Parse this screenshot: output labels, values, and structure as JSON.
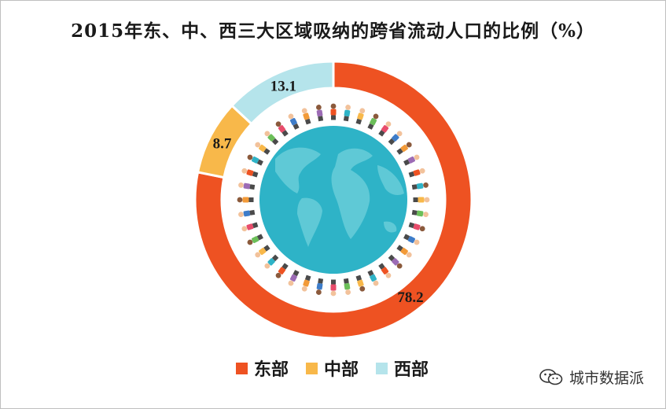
{
  "chart_data": {
    "type": "pie",
    "title": "2015年东、中、西三大区域吸纳的跨省流动人口的比例（%）",
    "categories": [
      "东部",
      "中部",
      "西部"
    ],
    "values": [
      78.2,
      8.7,
      13.1
    ],
    "colors": [
      "#EE5222",
      "#F8B84A",
      "#B5E4EB"
    ],
    "data_labels": [
      "78.2",
      "8.7",
      "13.1"
    ],
    "legend_position": "bottom",
    "donut": true
  },
  "center_image": {
    "icon": "globe-with-people-icon",
    "ocean_color": "#2EB3C7",
    "land_color": "#5FC9D6"
  },
  "watermark": {
    "text": "城市数据派",
    "icon": "wechat-icon"
  }
}
